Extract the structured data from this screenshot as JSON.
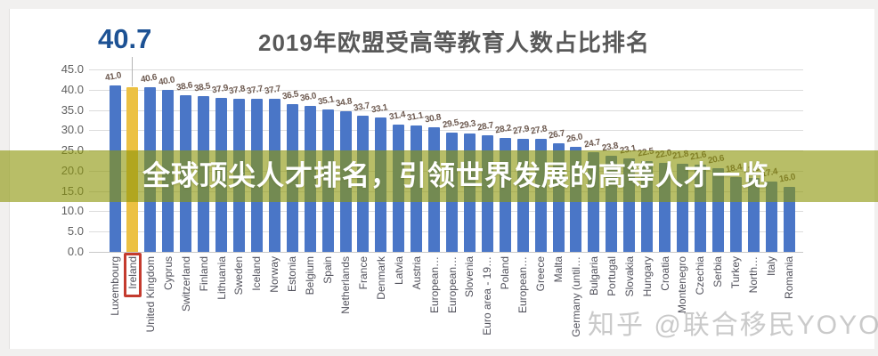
{
  "callout": {
    "value": "40.7",
    "target_category": "Ireland"
  },
  "banner": {
    "text": "全球顶尖人才排名，引领世界发展的高等人才一览"
  },
  "watermark": {
    "text": "知乎 @联合移民YOYO"
  },
  "chart_data": {
    "type": "bar",
    "title": "2019年欧盟受高等教育人数占比排名",
    "categories": [
      "Luxembourg",
      "Ireland",
      "United Kingdom",
      "Cyprus",
      "Switzerland",
      "Finland",
      "Lithuania",
      "Sweden",
      "Iceland",
      "Norway",
      "Estonia",
      "Belgium",
      "Spain",
      "Netherlands",
      "France",
      "Denmark",
      "Latvia",
      "Austria",
      "European…",
      "European…",
      "Slovenia",
      "Euro area - 19…",
      "Poland",
      "European…",
      "Greece",
      "Malta",
      "Germany (until…",
      "Bulgaria",
      "Portugal",
      "Slovakia",
      "Hungary",
      "Croatia",
      "Montenegro",
      "Czechia",
      "Serbia",
      "Turkey",
      "North…",
      "Italy",
      "Romania"
    ],
    "values": [
      41.0,
      40.7,
      40.6,
      40.0,
      38.6,
      38.5,
      37.9,
      37.8,
      37.7,
      37.7,
      36.5,
      36.0,
      35.1,
      34.8,
      33.7,
      33.1,
      31.4,
      31.1,
      30.8,
      29.5,
      29.3,
      28.7,
      28.2,
      27.9,
      27.8,
      26.7,
      26.0,
      24.7,
      23.8,
      23.1,
      22.5,
      22.0,
      21.8,
      21.6,
      20.6,
      18.4,
      18.3,
      17.4,
      16.0
    ],
    "highlight_index": 1,
    "highlight_value_shown_as_callout": true,
    "ylim": [
      0,
      45
    ],
    "ytick_labels": [
      "45.0",
      "40.0",
      "35.0",
      "30.0",
      "25.0",
      "20.0",
      "15.0",
      "10.0",
      "5.0",
      "0.0"
    ],
    "grid": true,
    "value_labels": true,
    "legend": "none",
    "colors": {
      "bar": "#4a76c7",
      "highlight_bar": "#ecc143",
      "highlight_label_box": "#c43b2e",
      "value_label": "#6e5b51",
      "axis_label": "#5f5f5f",
      "title": "#595959",
      "callout_number": "#1d5294",
      "banner_overlay": "rgba(140,150,10,0.62)",
      "gridline": "#dcdcdc"
    }
  }
}
